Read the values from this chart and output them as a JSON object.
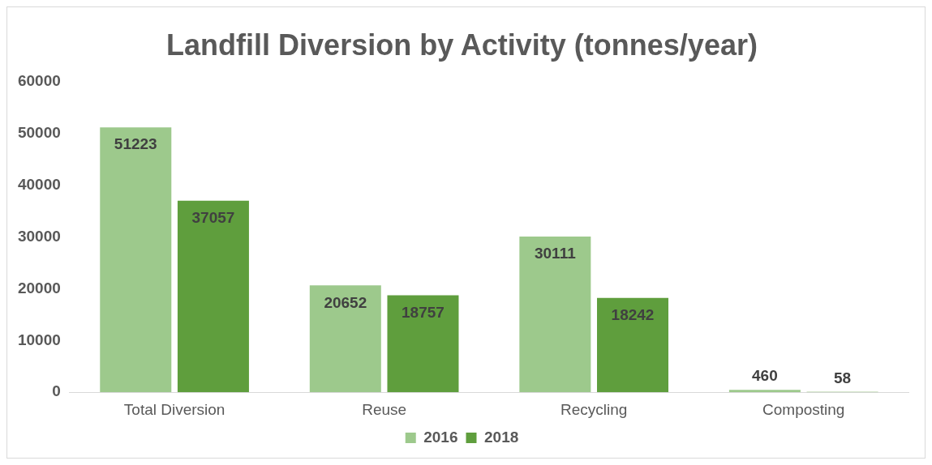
{
  "chart_data": {
    "type": "bar",
    "title": "Landfill Diversion by Activity (tonnes/year)",
    "categories": [
      "Total Diversion",
      "Reuse",
      "Recycling",
      "Composting"
    ],
    "series": [
      {
        "name": "2016",
        "color": "#9dc98c",
        "values": [
          51223,
          20652,
          30111,
          460
        ]
      },
      {
        "name": "2018",
        "color": "#5f9e3d",
        "values": [
          37057,
          18757,
          18242,
          58
        ]
      }
    ],
    "ylim": [
      0,
      60000
    ],
    "yticks": [
      0,
      10000,
      20000,
      30000,
      40000,
      50000,
      60000
    ],
    "data_labels": true,
    "legend": "bottom"
  }
}
